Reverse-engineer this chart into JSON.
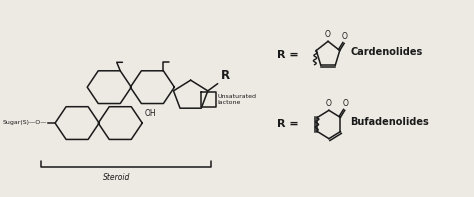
{
  "bg_color": "#ede9e3",
  "line_color": "#1a1a1a",
  "figsize": [
    4.74,
    1.97
  ],
  "dpi": 100,
  "label_steroid": "Steroid",
  "label_sugar": "Sugar(S)",
  "label_oh": "OH",
  "label_unsaturated": "Unsaturated\nlactone",
  "label_r": "R",
  "label_cardenolides": "Cardenolides",
  "label_bufadenolides": "Bufadenolides",
  "label_O": "O"
}
